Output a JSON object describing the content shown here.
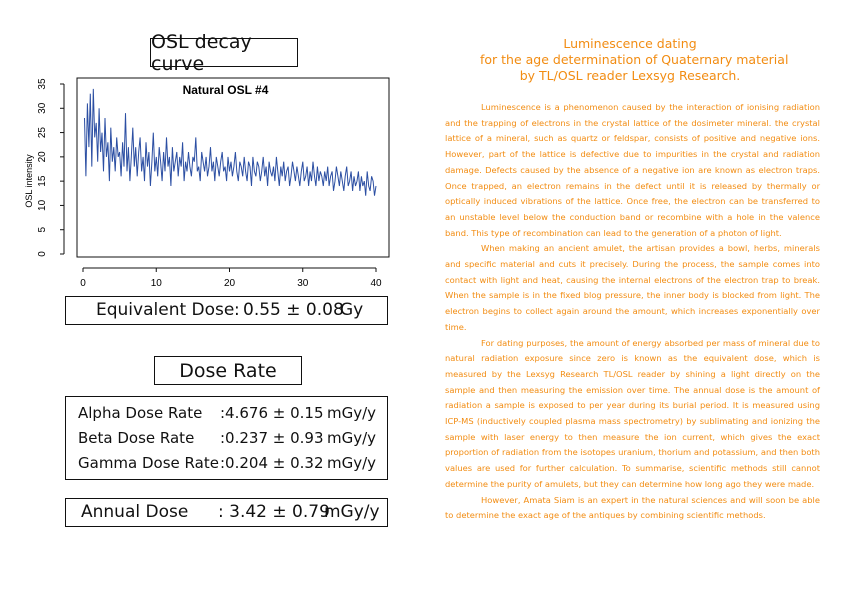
{
  "osl_box": {
    "title": "OSL decay curve"
  },
  "chart_data": {
    "type": "line",
    "title": "Natural OSL #4",
    "xlabel": "",
    "ylabel": "OSL intensity",
    "xlim": [
      0,
      40
    ],
    "ylim": [
      0,
      35
    ],
    "x_ticks": [
      0,
      10,
      20,
      30,
      40
    ],
    "y_ticks": [
      0,
      5,
      10,
      15,
      20,
      25,
      30,
      35
    ],
    "series_color": "#2c4fa3",
    "series": [
      {
        "name": "",
        "x_start": 0.2,
        "x_step": 0.2,
        "values": [
          28,
          16,
          31,
          22,
          33,
          18,
          34,
          24,
          27,
          19,
          30,
          21,
          25,
          17,
          28,
          20,
          23,
          15,
          26,
          19,
          22,
          17,
          24,
          20,
          21,
          16,
          23,
          18,
          29,
          17,
          22,
          15,
          20,
          26,
          18,
          22,
          16,
          21,
          24,
          17,
          20,
          15,
          23,
          18,
          21,
          14,
          19,
          25,
          17,
          20,
          16,
          22,
          19,
          15,
          21,
          17,
          24,
          18,
          20,
          14,
          22,
          17,
          19,
          21,
          16,
          20,
          18,
          23,
          15,
          19,
          17,
          21,
          18,
          16,
          20,
          19,
          24,
          17,
          18,
          15,
          21,
          19,
          17,
          20,
          16,
          18,
          22,
          17,
          19,
          15,
          20,
          18,
          16,
          19,
          21,
          17,
          18,
          15,
          20,
          17,
          19,
          16,
          18,
          21,
          17,
          15,
          19,
          18,
          16,
          20,
          17,
          15,
          19,
          18,
          14,
          20,
          17,
          16,
          19,
          18,
          15,
          17,
          20,
          16,
          18,
          14,
          19,
          17,
          16,
          18,
          15,
          20,
          17,
          14,
          18,
          16,
          19,
          15,
          17,
          18,
          14,
          16,
          19,
          17,
          15,
          18,
          16,
          14,
          17,
          19,
          15,
          16,
          18,
          14,
          17,
          15,
          19,
          16,
          14,
          18,
          15,
          17,
          16,
          14,
          17,
          15,
          18,
          14,
          16,
          17,
          13,
          15,
          18,
          16,
          14,
          17,
          15,
          13,
          16,
          18,
          14,
          15,
          17,
          13,
          16,
          14,
          15,
          17,
          13,
          16,
          14,
          15,
          12,
          17,
          14,
          13,
          16,
          15,
          12,
          14
        ]
      }
    ]
  },
  "equivalent_dose": {
    "label": "Equivalent Dose",
    "colon": ":",
    "value": "0.55 ± 0.08",
    "unit": "Gy"
  },
  "dose_rate": {
    "title": "Dose Rate",
    "rows": [
      {
        "label": "Alpha Dose Rate",
        "value": ":4.676 ± 0.15",
        "unit": "mGy/y"
      },
      {
        "label": "Beta Dose Rate",
        "value": ":0.237 ± 0.93",
        "unit": "mGy/y"
      },
      {
        "label": "Gamma Dose Rate",
        "value": ":0.204 ± 0.32",
        "unit": "mGy/y"
      }
    ]
  },
  "annual_dose": {
    "label": "Annual Dose",
    "value": ": 3.42 ± 0.79",
    "unit": "mGy/y"
  },
  "article": {
    "title_lines": [
      "Luminescence dating",
      "for the age determination of Quaternary material",
      "by TL/OSL reader Lexsyg Research."
    ],
    "paragraphs": [
      "Luminescence is a phenomenon caused by the interaction of ionising radiation and the trapping of electrons in the crystal lattice of the dosimeter mineral. the crystal lattice of a mineral, such as quartz or feldspar, consists of positive and negative ions. However, part of the lattice is defective due to impurities in the crystal and radiation damage. Defects caused by the absence of a negative ion are known as electron traps. Once trapped, an electron remains in the defect until it is released by thermally or optically induced vibrations of the lattice. Once free, the electron can be transferred to an unstable level below the conduction band or recombine with a hole in the valence band. This type of recombination can lead to the generation of a photon of light.",
      "When making an ancient amulet, the artisan provides a bowl, herbs, minerals and specific material and cuts it precisely. During the process, the sample comes into contact with light and heat, causing the internal electrons of the electron trap to break. When the sample is in the fixed blog pressure, the inner body is blocked from light. The electron begins to collect again around the amount, which increases exponentially over time.",
      "For dating purposes, the amount of energy absorbed per mass of mineral due to natural radiation exposure since zero is known as the equivalent dose, which is measured by the Lexsyg Research TL/OSL reader by shining a light directly on the sample and then measuring the emission over time. The annual dose is the amount of radiation a sample is exposed to per year during its burial period. It is measured using ICP-MS (inductively coupled plasma mass spectrometry) by sublimating and ionizing the sample with laser energy to then measure the ion current, which gives the exact proportion of radiation from the isotopes uranium, thorium and potassium, and then both values are used for further calculation. To summarise, scientific methods still cannot determine the purity of amulets, but they can determine how long ago they were made.",
      "However, Amata Siam is an expert in the natural sciences and will soon be able to determine the exact age of the antiques by combining scientific methods."
    ],
    "color": "#f28c12"
  }
}
